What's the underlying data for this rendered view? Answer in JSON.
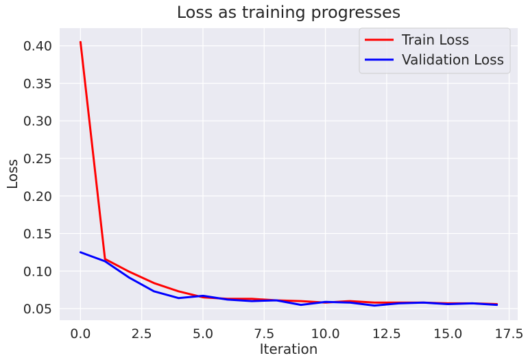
{
  "chart_data": {
    "type": "line",
    "title": "Loss as training progresses",
    "xlabel": "Iteration",
    "ylabel": "Loss",
    "xlim": [
      -0.85,
      17.85
    ],
    "ylim": [
      0.0345,
      0.4235
    ],
    "xticks": [
      0.0,
      2.5,
      5.0,
      7.5,
      10.0,
      12.5,
      15.0,
      17.5
    ],
    "xtick_labels": [
      "0.0",
      "2.5",
      "5.0",
      "7.5",
      "10.0",
      "12.5",
      "15.0",
      "17.5"
    ],
    "yticks": [
      0.05,
      0.1,
      0.15,
      0.2,
      0.25,
      0.3,
      0.35,
      0.4
    ],
    "ytick_labels": [
      "0.05",
      "0.10",
      "0.15",
      "0.20",
      "0.25",
      "0.30",
      "0.35",
      "0.40"
    ],
    "grid": true,
    "legend": "top-right",
    "background": "#eaeaf2",
    "x": [
      0,
      1,
      2,
      3,
      4,
      5,
      6,
      7,
      8,
      9,
      10,
      11,
      12,
      13,
      14,
      15,
      16,
      17
    ],
    "series": [
      {
        "name": "Train Loss",
        "color": "#ff0000",
        "values": [
          0.405,
          0.116,
          0.099,
          0.084,
          0.073,
          0.065,
          0.063,
          0.063,
          0.061,
          0.06,
          0.058,
          0.06,
          0.058,
          0.058,
          0.058,
          0.057,
          0.057,
          0.056
        ]
      },
      {
        "name": "Validation Loss",
        "color": "#0000ff",
        "values": [
          0.125,
          0.113,
          0.091,
          0.073,
          0.064,
          0.067,
          0.062,
          0.06,
          0.061,
          0.055,
          0.059,
          0.058,
          0.054,
          0.057,
          0.058,
          0.056,
          0.057,
          0.055
        ]
      }
    ]
  }
}
